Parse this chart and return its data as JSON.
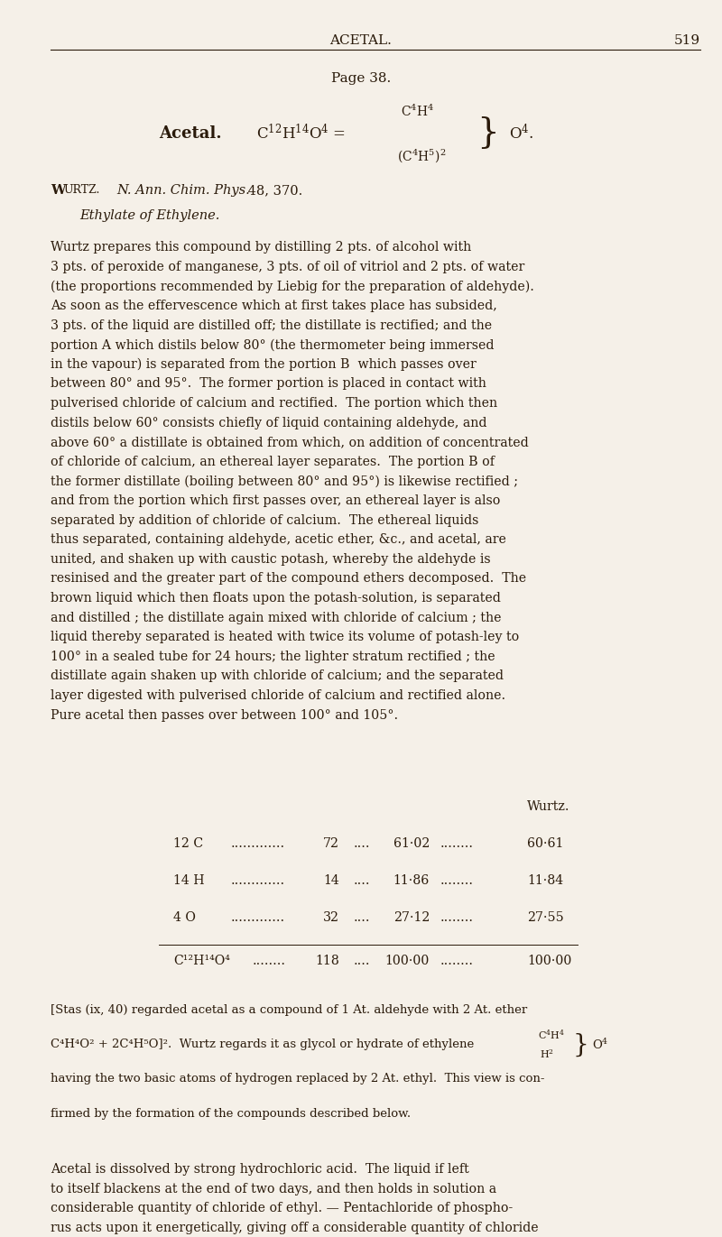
{
  "bg_color": "#f5f0e8",
  "text_color": "#2a1a0a",
  "page_width": 8.0,
  "page_height": 13.71,
  "header_title": "ACETAL.",
  "header_page": "519",
  "page_ref": "Page 38.",
  "reference_line": "Wurtz.  N. Ann. Chim. Phys. 48, 370.",
  "subtitle": "Ethylate of Ethylene.",
  "body_text": [
    "Wurtz prepares this compound by distilling 2 pts. of alcohol with",
    "3 pts. of peroxide of manganese, 3 pts. of oil of vitriol and 2 pts. of water",
    "(the proportions recommended by Liebig for the preparation of aldehyde).",
    "As soon as the effervescence which at first takes place has subsided,",
    "3 pts. of the liquid are distilled off; the distillate is rectified; and the",
    "portion A which distils below 80° (the thermometer being immersed",
    "in the vapour) is separated from the portion B  which passes over",
    "between 80° and 95°.  The former portion is placed in contact with",
    "pulverised chloride of calcium and rectified.  The portion which then",
    "distils below 60° consists chiefly of liquid containing aldehyde, and",
    "above 60° a distillate is obtained from which, on addition of concentrated",
    "of chloride of calcium, an ethereal layer separates.  The portion B of",
    "the former distillate (boiling between 80° and 95°) is likewise rectified ;",
    "and from the portion which first passes over, an ethereal layer is also",
    "separated by addition of chloride of calcium.  The ethereal liquids",
    "thus separated, containing aldehyde, acetic ether, &c., and acetal, are",
    "united, and shaken up with caustic potash, whereby the aldehyde is",
    "resinised and the greater part of the compound ethers decomposed.  The",
    "brown liquid which then floats upon the potash-solution, is separated",
    "and distilled ; the distillate again mixed with chloride of calcium ; the",
    "liquid thereby separated is heated with twice its volume of potash-ley to",
    "100° in a sealed tube for 24 hours; the lighter stratum rectified ; the",
    "distillate again shaken up with chloride of calcium; and the separated",
    "layer digested with pulverised chloride of calcium and rectified alone.",
    "Pure acetal then passes over between 100° and 105°."
  ],
  "table_header": "Wurtz.",
  "table_rows": [
    [
      "12 C",
      "72",
      "....",
      "61·02",
      "........",
      "60·61"
    ],
    [
      "14 H",
      "14",
      "....",
      "11·86",
      "........",
      "11·84"
    ],
    [
      "4 O",
      "32",
      "....",
      "27·12",
      "........",
      "27·55"
    ]
  ],
  "table_formula": "C¹²H¹⁴O⁴",
  "table_total": [
    "118",
    "....",
    "100·00",
    "........",
    "100·00"
  ],
  "footnote1": "[Stas (ix, 40) regarded acetal as a compound of 1 At. aldehyde with 2 At. ether",
  "footnote2": "C⁴H⁴O² + 2C⁴H⁵O]².  Wurtz regards it as glycol or hydrate of ethylene",
  "footnote2_formula_top": "C⁴H⁴",
  "footnote2_formula_bottom": "H²",
  "footnote2_end": "O⁴",
  "footnote3": "having the two basic atoms of hydrogen replaced by 2 At. ethyl.  This view is con-",
  "footnote4": "firmed by the formation of the compounds described below.",
  "body_text2": [
    "Acetal is dissolved by strong hydrochloric acid.  The liquid if left",
    "to itself blackens at the end of two days, and then holds in solution a",
    "considerable quantity of chloride of ethyl. — Pentachloride of phospho-",
    "rus acts upon it energetically, giving off a considerable quantity of chloride"
  ]
}
